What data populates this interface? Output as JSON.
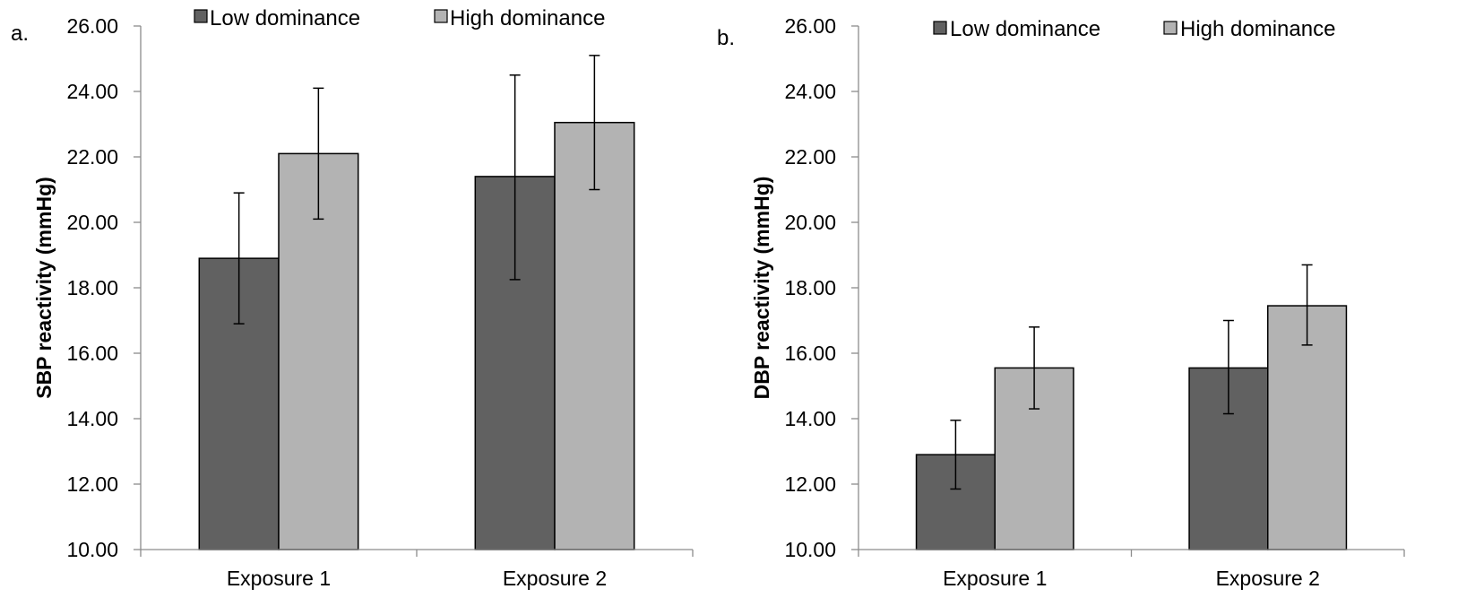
{
  "chart_data": [
    {
      "type": "bar",
      "panel_label": "a.",
      "title": "",
      "xlabel": "",
      "ylabel": "SBP reactivity (mmHg)",
      "ylim": [
        10,
        26
      ],
      "y_ticks": [
        "10.00",
        "12.00",
        "14.00",
        "16.00",
        "18.00",
        "20.00",
        "22.00",
        "24.00",
        "26.00"
      ],
      "categories": [
        "Exposure 1",
        "Exposure 2"
      ],
      "series": [
        {
          "name": "Low dominance",
          "color": "#616161",
          "values": [
            18.9,
            21.4
          ],
          "error_low": [
            16.9,
            18.25
          ],
          "error_high": [
            20.9,
            24.5
          ]
        },
        {
          "name": "High dominance",
          "color": "#b3b3b3",
          "values": [
            22.1,
            23.05
          ],
          "error_low": [
            20.1,
            21.0
          ],
          "error_high": [
            24.1,
            25.1
          ]
        }
      ],
      "grid": false,
      "legend_position": "top"
    },
    {
      "type": "bar",
      "panel_label": "b.",
      "title": "",
      "xlabel": "",
      "ylabel": "DBP reactivity (mmHg)",
      "ylim": [
        10,
        26
      ],
      "y_ticks": [
        "10.00",
        "12.00",
        "14.00",
        "16.00",
        "18.00",
        "20.00",
        "22.00",
        "24.00",
        "26.00"
      ],
      "categories": [
        "Exposure 1",
        "Exposure 2"
      ],
      "series": [
        {
          "name": "Low dominance",
          "color": "#616161",
          "values": [
            12.9,
            15.55
          ],
          "error_low": [
            11.85,
            14.15
          ],
          "error_high": [
            13.95,
            17.0
          ]
        },
        {
          "name": "High dominance",
          "color": "#b3b3b3",
          "values": [
            15.55,
            17.45
          ],
          "error_low": [
            14.3,
            16.25
          ],
          "error_high": [
            16.8,
            18.7
          ]
        }
      ],
      "grid": false,
      "legend_position": "top"
    }
  ]
}
